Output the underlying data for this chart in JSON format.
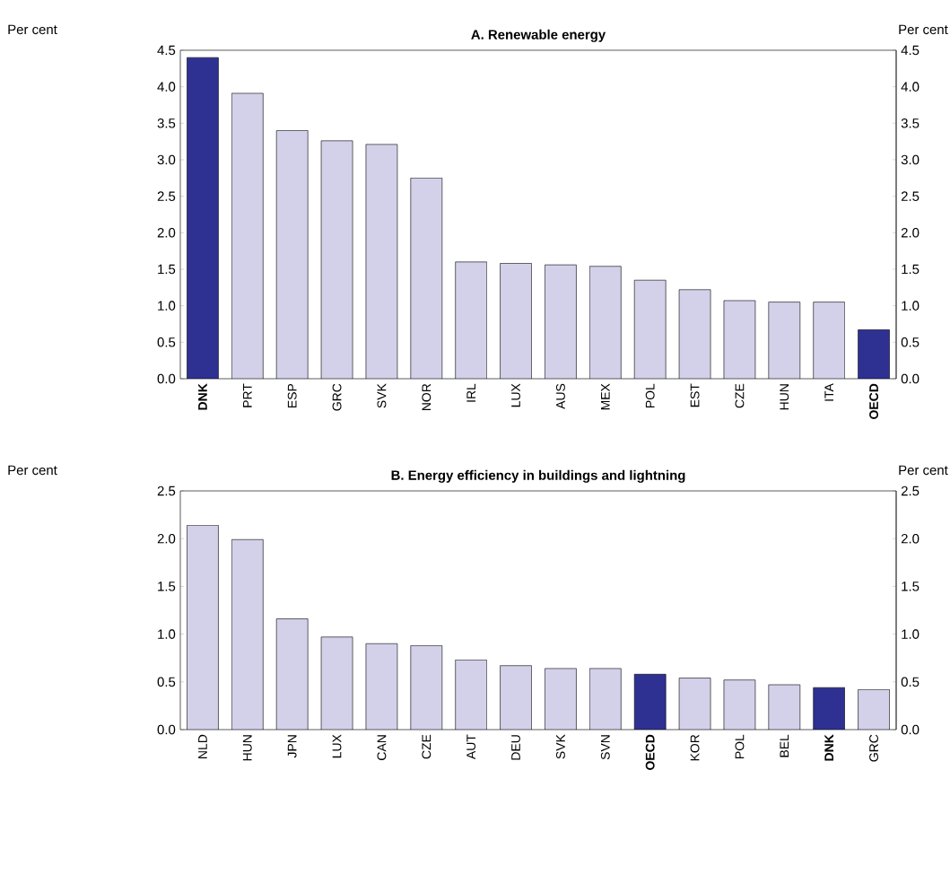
{
  "chart_data": [
    {
      "type": "bar",
      "title": "A. Renewable energy",
      "ylabel": "Per cent",
      "y2label": "Per cent",
      "categories": [
        "**DNK**",
        "PRT",
        "ESP",
        "GRC",
        "SVK",
        "NOR",
        "IRL",
        "LUX",
        "AUS",
        "MEX",
        "POL",
        "EST",
        "CZE",
        "HUN",
        "ITA",
        "**OECD**"
      ],
      "values": [
        4.4,
        3.91,
        3.4,
        3.26,
        3.21,
        2.75,
        1.6,
        1.58,
        1.56,
        1.54,
        1.35,
        1.22,
        1.07,
        1.05,
        1.05,
        0.67
      ],
      "colors": [
        "#2e3192",
        "#d3d1ea",
        "#d3d1ea",
        "#d3d1ea",
        "#d3d1ea",
        "#d3d1ea",
        "#d3d1ea",
        "#d3d1ea",
        "#d3d1ea",
        "#d3d1ea",
        "#d3d1ea",
        "#d3d1ea",
        "#d3d1ea",
        "#d3d1ea",
        "#d3d1ea",
        "#2e3192"
      ],
      "ylim": [
        0,
        4.5
      ],
      "yticks": [
        {
          "value": 0,
          "label": "0.0"
        },
        0.5,
        {
          "value": 1,
          "label": "1.0"
        },
        1.5,
        {
          "value": 2,
          "label": "2.0"
        },
        2.5,
        {
          "value": 3,
          "label": "3.0"
        },
        3.5,
        {
          "value": 4,
          "label": "4.0"
        },
        4.5
      ],
      "y2lim": [
        0,
        4.5
      ],
      "y2ticks": [
        {
          "value": 0,
          "label": "0.0"
        },
        0.5,
        {
          "value": 1,
          "label": "1.0"
        },
        1.5,
        {
          "value": 2,
          "label": "2.0"
        },
        2.5,
        {
          "value": 3,
          "label": "3.0"
        },
        3.5,
        {
          "value": 4,
          "label": "4.0"
        },
        4.5
      ]
    },
    {
      "type": "bar",
      "title": "B. Energy efficiency in buildings and lightning",
      "ylabel": "Per cent",
      "y2label": "Per cent",
      "categories": [
        "NLD",
        "HUN",
        "JPN",
        "LUX",
        "CAN",
        "CZE",
        "AUT",
        "DEU",
        "SVK",
        "SVN",
        "**OECD**",
        "KOR",
        "POL",
        "BEL",
        "**DNK**",
        "GRC"
      ],
      "values": [
        2.14,
        1.99,
        1.16,
        0.97,
        0.9,
        0.88,
        0.73,
        0.67,
        0.64,
        0.64,
        0.58,
        0.54,
        0.52,
        0.47,
        0.44,
        0.42
      ],
      "colors": [
        "#d3d1ea",
        "#d3d1ea",
        "#d3d1ea",
        "#d3d1ea",
        "#d3d1ea",
        "#d3d1ea",
        "#d3d1ea",
        "#d3d1ea",
        "#d3d1ea",
        "#d3d1ea",
        "#2e3192",
        "#d3d1ea",
        "#d3d1ea",
        "#d3d1ea",
        "#2e3192",
        "#d3d1ea"
      ],
      "ylim": [
        0,
        2.5
      ],
      "yticks": [
        {
          "value": 0,
          "label": "0.0"
        },
        0.5,
        {
          "value": 1,
          "label": "1.0"
        },
        1.5,
        {
          "value": 2,
          "label": "2.0"
        },
        2.5
      ],
      "y2lim": [
        0,
        2.5
      ],
      "y2ticks": [
        {
          "value": 0,
          "label": "0.0"
        },
        0.5,
        {
          "value": 1,
          "label": "1.0"
        },
        1.5,
        {
          "value": 2,
          "label": "2.0"
        },
        2.5
      ]
    }
  ]
}
